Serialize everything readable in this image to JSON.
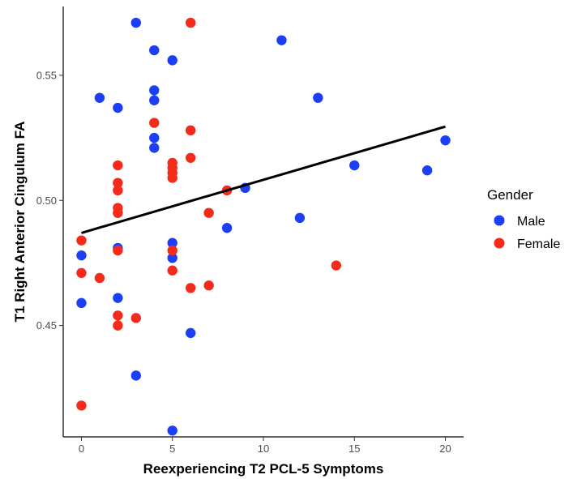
{
  "chart_data": {
    "type": "scatter",
    "xlabel": "Reexperiencing T2 PCL-5 Symptoms",
    "ylabel": "T1 Right Anterior Cingulum FA",
    "xlim": [
      -1,
      21
    ],
    "ylim": [
      0.4055,
      0.5775
    ],
    "x_ticks": [
      0,
      5,
      10,
      15,
      20
    ],
    "y_ticks": [
      0.45,
      0.5,
      0.55
    ],
    "y_tick_labels": [
      "0.45",
      "0.50",
      "0.55"
    ],
    "grid": false,
    "legend": {
      "title": "Gender",
      "placement": "right",
      "entries": [
        {
          "label": "Male",
          "color": "#1c3ff5"
        },
        {
          "label": "Female",
          "color": "#f42a1b"
        }
      ]
    },
    "regression_line": {
      "x": [
        0,
        20
      ],
      "y": [
        0.487,
        0.5295
      ],
      "color": "#000000"
    },
    "series": [
      {
        "name": "Male",
        "color": "#1c3ff5",
        "points": [
          [
            0,
            0.478
          ],
          [
            0,
            0.459
          ],
          [
            1,
            0.541
          ],
          [
            2,
            0.537
          ],
          [
            2,
            0.481
          ],
          [
            2,
            0.461
          ],
          [
            3,
            0.571
          ],
          [
            3,
            0.43
          ],
          [
            4,
            0.56
          ],
          [
            4,
            0.544
          ],
          [
            4,
            0.54
          ],
          [
            4,
            0.525
          ],
          [
            4,
            0.521
          ],
          [
            5,
            0.556
          ],
          [
            5,
            0.483
          ],
          [
            5,
            0.477
          ],
          [
            5,
            0.408
          ],
          [
            6,
            0.447
          ],
          [
            8,
            0.489
          ],
          [
            9,
            0.505
          ],
          [
            11,
            0.564
          ],
          [
            12,
            0.493
          ],
          [
            13,
            0.541
          ],
          [
            15,
            0.514
          ],
          [
            19,
            0.512
          ],
          [
            20,
            0.524
          ]
        ]
      },
      {
        "name": "Female",
        "color": "#f42a1b",
        "points": [
          [
            0,
            0.484
          ],
          [
            0,
            0.471
          ],
          [
            0,
            0.418
          ],
          [
            1,
            0.469
          ],
          [
            2,
            0.514
          ],
          [
            2,
            0.507
          ],
          [
            2,
            0.504
          ],
          [
            2,
            0.497
          ],
          [
            2,
            0.495
          ],
          [
            2,
            0.48
          ],
          [
            2,
            0.454
          ],
          [
            2,
            0.45
          ],
          [
            3,
            0.453
          ],
          [
            4,
            0.531
          ],
          [
            5,
            0.515
          ],
          [
            5,
            0.513
          ],
          [
            5,
            0.511
          ],
          [
            5,
            0.509
          ],
          [
            5,
            0.48
          ],
          [
            5,
            0.472
          ],
          [
            6,
            0.571
          ],
          [
            6,
            0.528
          ],
          [
            6,
            0.517
          ],
          [
            6,
            0.465
          ],
          [
            7,
            0.495
          ],
          [
            7,
            0.466
          ],
          [
            8,
            0.504
          ],
          [
            14,
            0.474
          ]
        ]
      }
    ]
  }
}
